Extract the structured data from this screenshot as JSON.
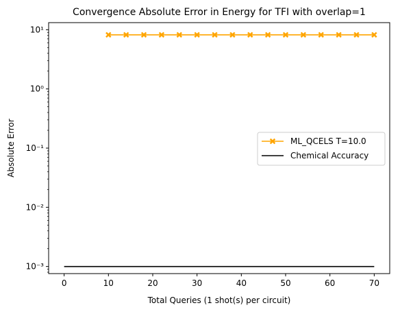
{
  "chart_data": {
    "type": "line",
    "title": "Convergence Absolute Error in Energy for TFI with overlap=1",
    "xlabel": "Total Queries (1 shot(s) per circuit)",
    "ylabel": "Absolute Error",
    "xlim": [
      -3.5,
      73.5
    ],
    "ylim_log10": [
      -3.12,
      1.12
    ],
    "yscale": "log",
    "grid": false,
    "legend_position": "center-right",
    "x_ticks": [
      0,
      10,
      20,
      30,
      40,
      50,
      60,
      70
    ],
    "x_tick_labels": [
      "0",
      "10",
      "20",
      "30",
      "40",
      "50",
      "60",
      "70"
    ],
    "y_ticks_log10": [
      -3,
      -2,
      -1,
      0,
      1
    ],
    "y_tick_labels": [
      "10⁻³",
      "10⁻²",
      "10⁻¹",
      "10⁰",
      "10¹"
    ],
    "series": [
      {
        "name": "ML_QCELS T=10.0",
        "color": "#FFA500",
        "marker": "X",
        "x": [
          10,
          14,
          18,
          22,
          26,
          30,
          34,
          38,
          42,
          46,
          50,
          54,
          58,
          62,
          66,
          70
        ],
        "y": [
          8.2,
          8.2,
          8.2,
          8.2,
          8.2,
          8.2,
          8.2,
          8.2,
          8.2,
          8.2,
          8.2,
          8.2,
          8.2,
          8.2,
          8.2,
          8.2
        ]
      },
      {
        "name": "Chemical Accuracy",
        "color": "#000000",
        "marker": "none",
        "x": [
          0,
          70
        ],
        "y": [
          0.001,
          0.001
        ]
      }
    ]
  }
}
